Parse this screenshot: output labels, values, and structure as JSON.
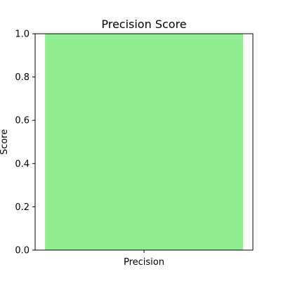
{
  "chart_data": {
    "type": "bar",
    "title": "Precision Score",
    "xlabel": "",
    "ylabel": "Score",
    "categories": [
      "Precision"
    ],
    "values": [
      1.0
    ],
    "ylim": [
      0,
      1.0
    ],
    "yticks": [
      "0.0",
      "0.2",
      "0.4",
      "0.6",
      "0.8",
      "1.0"
    ],
    "bar_color": "#90ee90",
    "grid": false,
    "legend": "none"
  }
}
